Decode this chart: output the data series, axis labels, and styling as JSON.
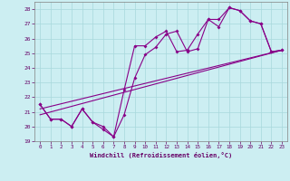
{
  "xlabel": "Windchill (Refroidissement éolien,°C)",
  "xlim": [
    -0.5,
    23.5
  ],
  "ylim": [
    19,
    28.5
  ],
  "yticks": [
    19,
    20,
    21,
    22,
    23,
    24,
    25,
    26,
    27,
    28
  ],
  "xticks": [
    0,
    1,
    2,
    3,
    4,
    5,
    6,
    7,
    8,
    9,
    10,
    11,
    12,
    13,
    14,
    15,
    16,
    17,
    18,
    19,
    20,
    21,
    22,
    23
  ],
  "background_color": "#cceef2",
  "grid_color": "#a8d8dc",
  "line_color": "#880088",
  "series1": [
    21.5,
    20.5,
    20.5,
    20.0,
    21.2,
    20.3,
    19.8,
    19.3,
    20.8,
    23.3,
    24.9,
    25.4,
    26.3,
    26.5,
    25.1,
    25.3,
    27.3,
    27.3,
    28.1,
    27.9,
    27.2,
    27.0,
    25.1,
    25.2
  ],
  "series2": [
    21.5,
    20.5,
    20.5,
    20.0,
    21.2,
    20.3,
    20.0,
    19.3,
    22.5,
    25.5,
    25.5,
    26.1,
    26.5,
    25.1,
    25.2,
    26.3,
    27.3,
    26.8,
    28.1,
    27.9,
    27.2,
    27.0,
    25.1,
    25.2
  ],
  "series3_x": [
    0,
    23
  ],
  "series3_y": [
    21.2,
    25.2
  ],
  "series4_x": [
    0,
    23
  ],
  "series4_y": [
    20.8,
    25.2
  ]
}
